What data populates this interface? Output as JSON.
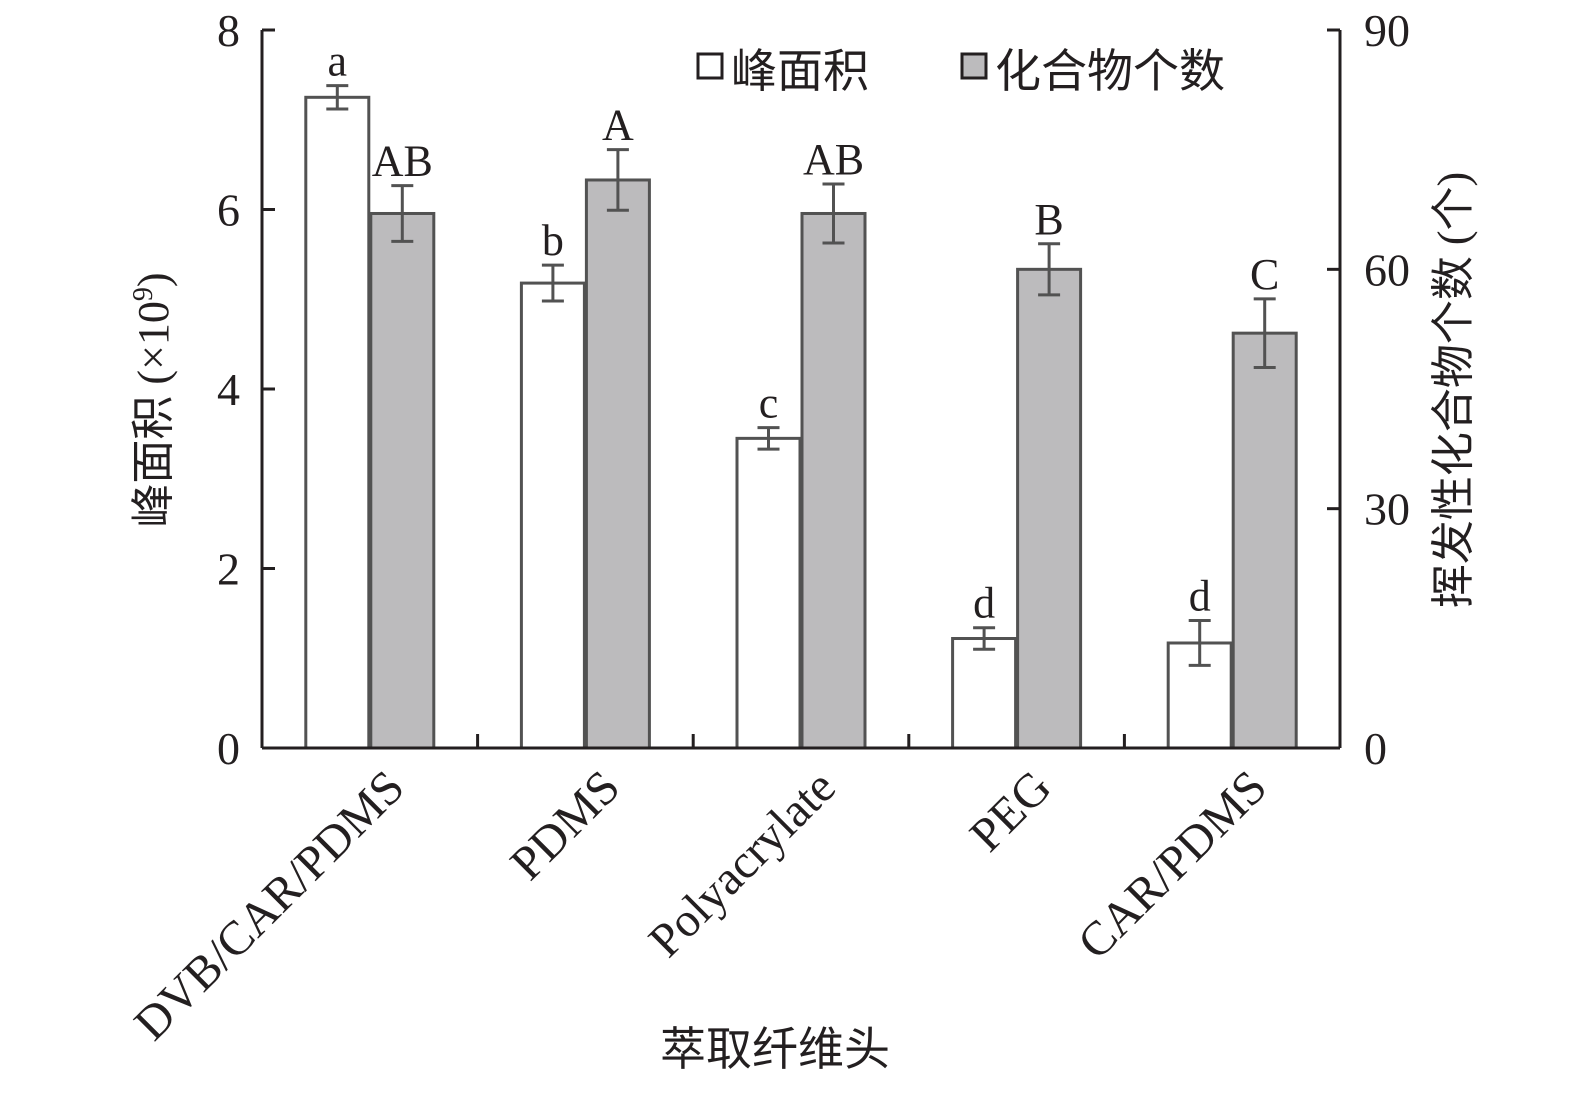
{
  "chart_data": {
    "type": "bar",
    "xlabel": "萃取纤维头",
    "ylabel_left": "峰面积 (×10",
    "ylabel_left_exp": "9",
    "ylabel_left_close": ")",
    "ylabel_right": "挥发性化合物个数 (个)",
    "categories": [
      "DVB/CAR/PDMS",
      "PDMS",
      "Polyacrylate",
      "PEG",
      "CAR/PDMS"
    ],
    "left_axis": {
      "ylim": [
        0,
        8
      ],
      "ticks": [
        "0",
        "2",
        "4",
        "6",
        "8"
      ]
    },
    "right_axis": {
      "ylim": [
        0,
        90
      ],
      "ticks": [
        "0",
        "30",
        "60",
        "90"
      ]
    },
    "legend": {
      "placement": "top-right"
    },
    "series": [
      {
        "name": "峰面积",
        "axis": "left",
        "color": "#ffffff",
        "values": [
          7.25,
          5.18,
          3.45,
          1.22,
          1.17
        ],
        "errors": [
          0.13,
          0.2,
          0.12,
          0.12,
          0.25
        ],
        "letters": [
          "a",
          "b",
          "c",
          "d",
          "d"
        ]
      },
      {
        "name": "化合物个数",
        "axis": "right",
        "color": "#bcbbbd",
        "values": [
          67,
          71.2,
          67,
          60,
          52
        ],
        "errors": [
          3.5,
          3.8,
          3.7,
          3.2,
          4.3
        ],
        "letters": [
          "AB",
          "A",
          "AB",
          "B",
          "C"
        ]
      }
    ]
  }
}
